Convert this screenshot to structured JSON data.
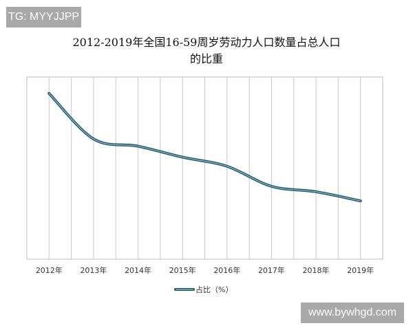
{
  "watermarks": {
    "top_left": "TG: MYYJJPP",
    "bottom_right": "www.bywhgd.com"
  },
  "chart_data": {
    "type": "line",
    "title_line1": "2012-2019年全国16-59周岁劳动力人口数量占总人口",
    "title_line2": "的比重",
    "categories": [
      "2012年",
      "2013年",
      "2014年",
      "2015年",
      "2016年",
      "2017年",
      "2018年",
      "2019年"
    ],
    "series": [
      {
        "name": "占比（%）",
        "values": [
          69.1,
          66.6,
          66.2,
          65.6,
          65.1,
          64.0,
          63.7,
          63.2
        ],
        "color": "#2b6a80"
      }
    ],
    "ylim": [
      60,
      70
    ],
    "grid": "vertical",
    "legend": "bottom",
    "xlabel": "",
    "ylabel": ""
  }
}
